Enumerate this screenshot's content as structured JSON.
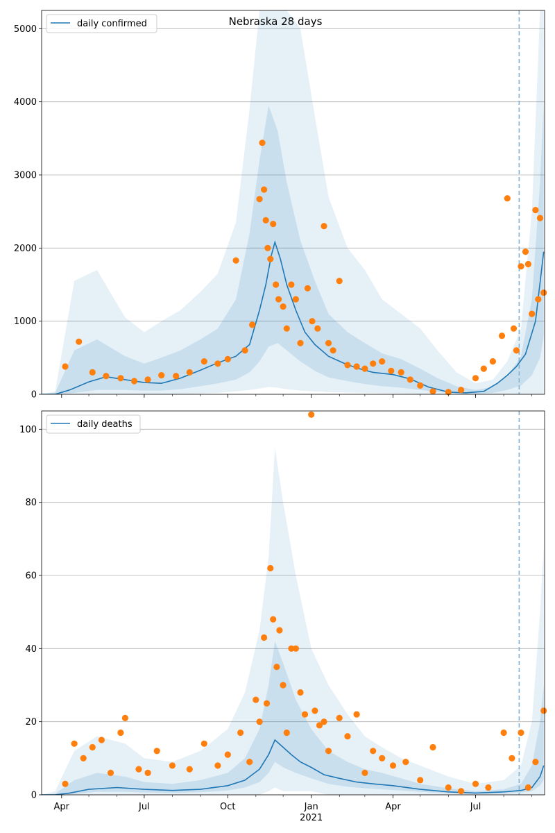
{
  "chart_data": [
    {
      "type": "line",
      "title": "Nebraska 28 days",
      "legend": {
        "placement": "top-left",
        "entries": [
          "daily confirmed"
        ]
      },
      "series": [
        {
          "name": "daily confirmed",
          "kind": "model-median-line",
          "x": [
            "2020-03-10",
            "2020-03-25",
            "2020-04-10",
            "2020-05-01",
            "2020-05-20",
            "2020-06-10",
            "2020-07-01",
            "2020-07-20",
            "2020-08-10",
            "2020-09-01",
            "2020-09-20",
            "2020-10-10",
            "2020-10-25",
            "2020-11-05",
            "2020-11-12",
            "2020-11-18",
            "2020-11-22",
            "2020-11-28",
            "2020-12-05",
            "2020-12-15",
            "2020-12-25",
            "2021-01-05",
            "2021-01-20",
            "2021-02-05",
            "2021-02-20",
            "2021-03-10",
            "2021-04-01",
            "2021-04-20",
            "2021-05-10",
            "2021-06-01",
            "2021-06-20",
            "2021-07-10",
            "2021-07-25",
            "2021-08-05",
            "2021-08-15",
            "2021-08-25",
            "2021-09-05",
            "2021-09-14"
          ],
          "y": [
            0,
            0,
            60,
            170,
            240,
            200,
            160,
            150,
            220,
            330,
            430,
            520,
            680,
            1150,
            1500,
            1900,
            2080,
            1850,
            1500,
            1150,
            850,
            680,
            520,
            430,
            360,
            300,
            270,
            210,
            100,
            30,
            20,
            40,
            150,
            260,
            380,
            550,
            1000,
            1950
          ]
        },
        {
          "name": "",
          "kind": "observed-points",
          "x": [
            "2020-04-05",
            "2020-04-20",
            "2020-05-05",
            "2020-05-20",
            "2020-06-05",
            "2020-06-20",
            "2020-07-05",
            "2020-07-20",
            "2020-08-05",
            "2020-08-20",
            "2020-09-05",
            "2020-09-20",
            "2020-10-01",
            "2020-10-10",
            "2020-10-20",
            "2020-10-28",
            "2020-11-05",
            "2020-11-08",
            "2020-11-10",
            "2020-11-12",
            "2020-11-14",
            "2020-11-17",
            "2020-11-20",
            "2020-11-23",
            "2020-11-26",
            "2020-12-01",
            "2020-12-05",
            "2020-12-10",
            "2020-12-15",
            "2020-12-20",
            "2020-12-28",
            "2021-01-02",
            "2021-01-08",
            "2021-01-15",
            "2021-01-20",
            "2021-01-25",
            "2021-02-01",
            "2021-02-10",
            "2021-02-20",
            "2021-03-01",
            "2021-03-10",
            "2021-03-20",
            "2021-03-30",
            "2021-04-10",
            "2021-04-20",
            "2021-05-01",
            "2021-05-15",
            "2021-06-01",
            "2021-06-15",
            "2021-07-01",
            "2021-07-10",
            "2021-07-20",
            "2021-07-30",
            "2021-08-05",
            "2021-08-12",
            "2021-08-15",
            "2021-08-20",
            "2021-08-25",
            "2021-08-28",
            "2021-09-01",
            "2021-09-05",
            "2021-09-08",
            "2021-09-10",
            "2021-09-14"
          ],
          "y": [
            380,
            720,
            300,
            250,
            220,
            180,
            200,
            260,
            250,
            300,
            450,
            420,
            480,
            1830,
            600,
            950,
            2670,
            3440,
            2800,
            2380,
            2000,
            1850,
            2330,
            1500,
            1300,
            1200,
            900,
            1500,
            1300,
            700,
            1450,
            1000,
            900,
            2300,
            700,
            600,
            1550,
            400,
            380,
            350,
            420,
            450,
            320,
            300,
            200,
            120,
            40,
            30,
            60,
            220,
            350,
            450,
            800,
            2680,
            900,
            600,
            1750,
            1950,
            1780,
            1100,
            2520,
            1300,
            2410,
            1390
          ]
        }
      ],
      "bands": [
        {
          "kind": "outer-percentile-band",
          "x": [
            "2020-03-10",
            "2020-03-25",
            "2020-04-15",
            "2020-05-10",
            "2020-06-10",
            "2020-07-01",
            "2020-07-20",
            "2020-08-10",
            "2020-09-01",
            "2020-09-20",
            "2020-10-10",
            "2020-10-25",
            "2020-11-05",
            "2020-11-15",
            "2020-11-25",
            "2020-12-05",
            "2020-12-20",
            "2021-01-05",
            "2021-01-20",
            "2021-02-10",
            "2021-03-01",
            "2021-03-20",
            "2021-04-10",
            "2021-05-01",
            "2021-05-20",
            "2021-06-10",
            "2021-07-01",
            "2021-07-20",
            "2021-08-05",
            "2021-08-20",
            "2021-09-01",
            "2021-09-10",
            "2021-09-14"
          ],
          "low": [
            0,
            0,
            0,
            0,
            0,
            0,
            0,
            0,
            10,
            20,
            40,
            60,
            80,
            100,
            90,
            70,
            50,
            40,
            30,
            25,
            20,
            15,
            10,
            5,
            0,
            0,
            0,
            0,
            0,
            0,
            0,
            0,
            0
          ],
          "high": [
            0,
            40,
            1550,
            1700,
            1050,
            850,
            1000,
            1150,
            1400,
            1650,
            2350,
            3900,
            5250,
            5250,
            5250,
            5250,
            5000,
            3800,
            2700,
            2000,
            1700,
            1300,
            1100,
            900,
            600,
            300,
            150,
            200,
            450,
            900,
            2500,
            5250,
            5250
          ]
        },
        {
          "kind": "inner-percentile-band",
          "x": [
            "2020-03-10",
            "2020-03-25",
            "2020-04-15",
            "2020-05-10",
            "2020-06-10",
            "2020-07-01",
            "2020-07-20",
            "2020-08-10",
            "2020-09-01",
            "2020-09-20",
            "2020-10-10",
            "2020-10-25",
            "2020-11-05",
            "2020-11-15",
            "2020-11-25",
            "2020-12-05",
            "2020-12-20",
            "2021-01-05",
            "2021-01-20",
            "2021-02-10",
            "2021-03-01",
            "2021-03-20",
            "2021-04-10",
            "2021-05-01",
            "2021-05-20",
            "2021-06-10",
            "2021-07-01",
            "2021-07-20",
            "2021-08-05",
            "2021-08-20",
            "2021-09-01",
            "2021-09-10",
            "2021-09-14"
          ],
          "low": [
            0,
            0,
            20,
            60,
            60,
            50,
            50,
            70,
            110,
            150,
            200,
            300,
            450,
            650,
            700,
            600,
            450,
            320,
            230,
            180,
            140,
            110,
            90,
            60,
            30,
            10,
            5,
            20,
            60,
            120,
            260,
            500,
            800
          ],
          "high": [
            0,
            20,
            600,
            750,
            520,
            420,
            500,
            600,
            750,
            900,
            1300,
            2200,
            3200,
            3950,
            3600,
            2900,
            2100,
            1550,
            1100,
            850,
            700,
            560,
            480,
            350,
            220,
            110,
            60,
            100,
            250,
            520,
            1300,
            2900,
            4000
          ]
        }
      ],
      "xlabel": "",
      "ylabel": "",
      "ylim": [
        0,
        5250
      ],
      "yticks": [
        0,
        1000,
        2000,
        3000,
        4000,
        5000
      ],
      "x_ticks": [
        "Apr",
        "Jul",
        "Oct",
        "Jan",
        "Apr",
        "Jul"
      ],
      "x_ticks_dates": [
        "2020-04-01",
        "2020-07-01",
        "2020-10-01",
        "2021-01-01",
        "2021-04-01",
        "2021-07-01"
      ],
      "xlim": [
        "2020-03-10",
        "2021-09-15"
      ],
      "vline": {
        "x": "2021-08-18",
        "style": "dashed"
      },
      "grid": "horizontal",
      "colors": {
        "line": "#1f77b4",
        "points": "#ff7f0e",
        "band": "#1f77b4",
        "vline": "#7fb3d9"
      }
    },
    {
      "type": "line",
      "title": "",
      "legend": {
        "placement": "top-left",
        "entries": [
          "daily deaths"
        ]
      },
      "series": [
        {
          "name": "daily deaths",
          "kind": "model-median-line",
          "x": [
            "2020-03-10",
            "2020-03-25",
            "2020-04-10",
            "2020-05-01",
            "2020-06-01",
            "2020-07-01",
            "2020-08-01",
            "2020-09-01",
            "2020-10-01",
            "2020-10-20",
            "2020-11-05",
            "2020-11-15",
            "2020-11-22",
            "2020-12-01",
            "2020-12-10",
            "2020-12-20",
            "2021-01-01",
            "2021-01-15",
            "2021-02-01",
            "2021-02-20",
            "2021-03-10",
            "2021-04-01",
            "2021-05-01",
            "2021-06-01",
            "2021-07-01",
            "2021-08-01",
            "2021-08-20",
            "2021-09-01",
            "2021-09-10",
            "2021-09-14"
          ],
          "y": [
            0,
            0,
            0.5,
            1.5,
            2,
            1.5,
            1.2,
            1.5,
            2.5,
            4,
            7,
            11,
            15,
            13,
            11,
            9,
            7.5,
            5.5,
            4.5,
            3.5,
            3,
            2.5,
            1.5,
            0.8,
            0.5,
            0.8,
            1.2,
            2,
            5,
            8
          ]
        },
        {
          "name": "",
          "kind": "observed-points",
          "x": [
            "2020-04-05",
            "2020-04-15",
            "2020-04-25",
            "2020-05-05",
            "2020-05-15",
            "2020-05-25",
            "2020-06-05",
            "2020-06-10",
            "2020-06-25",
            "2020-07-05",
            "2020-07-15",
            "2020-08-01",
            "2020-08-20",
            "2020-09-05",
            "2020-09-20",
            "2020-10-01",
            "2020-10-15",
            "2020-10-25",
            "2020-11-01",
            "2020-11-05",
            "2020-11-10",
            "2020-11-13",
            "2020-11-17",
            "2020-11-20",
            "2020-11-24",
            "2020-11-27",
            "2020-12-01",
            "2020-12-05",
            "2020-12-10",
            "2020-12-15",
            "2020-12-20",
            "2020-12-25",
            "2021-01-01",
            "2021-01-05",
            "2021-01-10",
            "2021-01-15",
            "2021-01-20",
            "2021-02-01",
            "2021-02-10",
            "2021-02-20",
            "2021-03-01",
            "2021-03-10",
            "2021-03-20",
            "2021-04-01",
            "2021-04-15",
            "2021-05-01",
            "2021-05-15",
            "2021-06-01",
            "2021-06-15",
            "2021-07-01",
            "2021-07-15",
            "2021-08-01",
            "2021-08-10",
            "2021-08-20",
            "2021-08-28",
            "2021-09-05",
            "2021-09-14"
          ],
          "y": [
            3,
            14,
            10,
            13,
            15,
            6,
            17,
            21,
            7,
            6,
            12,
            8,
            7,
            14,
            8,
            11,
            17,
            9,
            26,
            20,
            43,
            25,
            62,
            48,
            35,
            45,
            30,
            17,
            40,
            40,
            28,
            22,
            104,
            23,
            19,
            20,
            12,
            21,
            16,
            22,
            6,
            12,
            10,
            8,
            9,
            4,
            13,
            2,
            1,
            3,
            2,
            17,
            10,
            17,
            2,
            9,
            23
          ]
        }
      ],
      "bands": [
        {
          "kind": "outer-percentile-band",
          "x": [
            "2020-03-10",
            "2020-03-25",
            "2020-04-15",
            "2020-05-10",
            "2020-06-10",
            "2020-07-01",
            "2020-08-01",
            "2020-09-01",
            "2020-10-01",
            "2020-10-20",
            "2020-11-05",
            "2020-11-15",
            "2020-11-22",
            "2020-12-01",
            "2020-12-15",
            "2021-01-01",
            "2021-01-20",
            "2021-02-10",
            "2021-03-01",
            "2021-03-20",
            "2021-04-10",
            "2021-05-01",
            "2021-06-01",
            "2021-07-01",
            "2021-08-01",
            "2021-08-20",
            "2021-09-01",
            "2021-09-10",
            "2021-09-14"
          ],
          "low": [
            0,
            0,
            0,
            0,
            0,
            0,
            0,
            0,
            0,
            0,
            0,
            1,
            2,
            1,
            1,
            1,
            0,
            0,
            0,
            0,
            0,
            0,
            0,
            0,
            0,
            0,
            0,
            0,
            0
          ],
          "high": [
            0,
            1,
            12,
            16,
            14,
            10,
            9,
            12,
            18,
            28,
            45,
            65,
            95,
            80,
            60,
            40,
            30,
            22,
            16,
            13,
            10,
            8,
            5,
            3,
            4,
            8,
            20,
            50,
            68
          ]
        },
        {
          "kind": "inner-percentile-band",
          "x": [
            "2020-03-10",
            "2020-03-25",
            "2020-04-15",
            "2020-05-10",
            "2020-06-10",
            "2020-07-01",
            "2020-08-01",
            "2020-09-01",
            "2020-10-01",
            "2020-10-20",
            "2020-11-05",
            "2020-11-15",
            "2020-11-22",
            "2020-12-01",
            "2020-12-15",
            "2021-01-01",
            "2021-01-20",
            "2021-02-10",
            "2021-03-01",
            "2021-03-20",
            "2021-04-10",
            "2021-05-01",
            "2021-06-01",
            "2021-07-01",
            "2021-08-01",
            "2021-08-20",
            "2021-09-01",
            "2021-09-10",
            "2021-09-14"
          ],
          "low": [
            0,
            0,
            0.2,
            0.8,
            0.8,
            0.6,
            0.5,
            0.7,
            1.2,
            2,
            3.5,
            6,
            9,
            7.5,
            6,
            4.5,
            3,
            2.2,
            1.8,
            1.5,
            1.2,
            0.8,
            0.4,
            0.2,
            0.3,
            0.6,
            1,
            2.5,
            4
          ],
          "high": [
            0,
            0.3,
            4,
            6,
            5,
            3.5,
            3,
            4,
            6,
            10,
            18,
            30,
            42,
            36,
            26,
            18,
            12,
            9,
            7,
            6,
            4.5,
            3,
            1.8,
            1,
            1.5,
            3,
            8,
            20,
            30
          ]
        }
      ],
      "xlabel": "",
      "ylabel": "",
      "ylim": [
        0,
        105
      ],
      "yticks": [
        0,
        20,
        40,
        60,
        80,
        100
      ],
      "x_ticks": [
        "Apr",
        "Jul",
        "Oct",
        "Jan",
        "Apr",
        "Jul"
      ],
      "x_ticks_dates": [
        "2020-04-01",
        "2020-07-01",
        "2020-10-01",
        "2021-01-01",
        "2021-04-01",
        "2021-07-01"
      ],
      "x_year_label": "2021",
      "x_year_label_date": "2021-01-01",
      "xlim": [
        "2020-03-10",
        "2021-09-15"
      ],
      "vline": {
        "x": "2021-08-18",
        "style": "dashed"
      },
      "grid": "horizontal",
      "colors": {
        "line": "#1f77b4",
        "points": "#ff7f0e",
        "band": "#1f77b4",
        "vline": "#7fb3d9"
      }
    }
  ]
}
